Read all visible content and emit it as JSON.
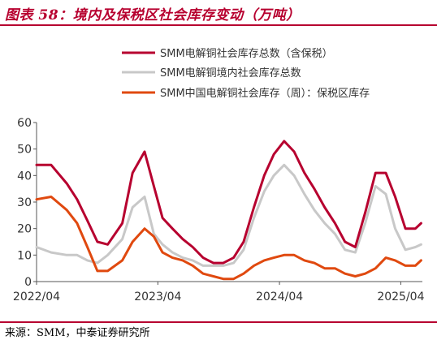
{
  "header": {
    "title": "图表 58：境内及保税区社会库存变动（万吨）"
  },
  "footer": {
    "source": "来源：SMM，中泰证券研究所"
  },
  "colors": {
    "accent": "#b7002f",
    "series_total_bonded": "#b7002f",
    "series_domestic": "#c8c8c8",
    "series_bonded": "#e0490f",
    "axis": "#555555"
  },
  "chart_data": {
    "type": "line",
    "title": "",
    "xlabel": "",
    "ylabel": "",
    "ylim": [
      0,
      60
    ],
    "yticks": [
      0,
      10,
      20,
      30,
      40,
      50,
      60
    ],
    "xticks": [
      "2022/04",
      "2023/04",
      "2024/04",
      "2025/04"
    ],
    "xlim": [
      "2022-04-01",
      "2025-06-05"
    ],
    "grid": false,
    "legend_position": "top-right",
    "x": [
      "2022-04-01",
      "2022-05-15",
      "2022-07-01",
      "2022-08-01",
      "2022-09-01",
      "2022-10-01",
      "2022-11-01",
      "2022-12-15",
      "2023-01-15",
      "2023-02-20",
      "2023-03-20",
      "2023-04-15",
      "2023-05-15",
      "2023-06-15",
      "2023-07-15",
      "2023-08-15",
      "2023-09-15",
      "2023-10-15",
      "2023-11-15",
      "2023-12-15",
      "2024-01-15",
      "2024-02-15",
      "2024-03-15",
      "2024-04-15",
      "2024-05-15",
      "2024-06-15",
      "2024-07-15",
      "2024-08-15",
      "2024-09-15",
      "2024-10-15",
      "2024-11-15",
      "2024-12-15",
      "2025-01-15",
      "2025-02-15",
      "2025-03-15",
      "2025-04-15",
      "2025-05-15",
      "2025-06-01"
    ],
    "series": [
      {
        "name": "SMM电解铜社会库存总数（含保税）",
        "color": "#b7002f",
        "values": [
          44,
          44,
          37,
          31,
          23,
          15,
          14,
          22,
          41,
          49,
          36,
          24,
          20,
          16,
          13,
          9,
          7,
          7,
          9,
          15,
          28,
          40,
          48,
          53,
          49,
          41,
          35,
          28,
          22,
          15,
          13,
          26,
          41,
          41,
          32,
          20,
          20,
          22
        ]
      },
      {
        "name": "SMM电解铜境内社会库存总数",
        "color": "#c8c8c8",
        "values": [
          13,
          11,
          10,
          10,
          8,
          7,
          10,
          16,
          28,
          32,
          18,
          14,
          11,
          9,
          8,
          6,
          6,
          6,
          7,
          12,
          24,
          34,
          40,
          44,
          40,
          33,
          27,
          22,
          18,
          12,
          11,
          22,
          36,
          33,
          20,
          12,
          13,
          14
        ]
      },
      {
        "name": "SMM中国电解铜社会库存（周）：保税区库存",
        "color": "#e0490f",
        "values": [
          31,
          32,
          27,
          22,
          13,
          4,
          4,
          8,
          15,
          20,
          17,
          11,
          9,
          8,
          6,
          3,
          2,
          1,
          1,
          3,
          6,
          8,
          9,
          10,
          10,
          8,
          7,
          5,
          5,
          3,
          2,
          3,
          5,
          9,
          8,
          6,
          6,
          8
        ]
      }
    ]
  }
}
